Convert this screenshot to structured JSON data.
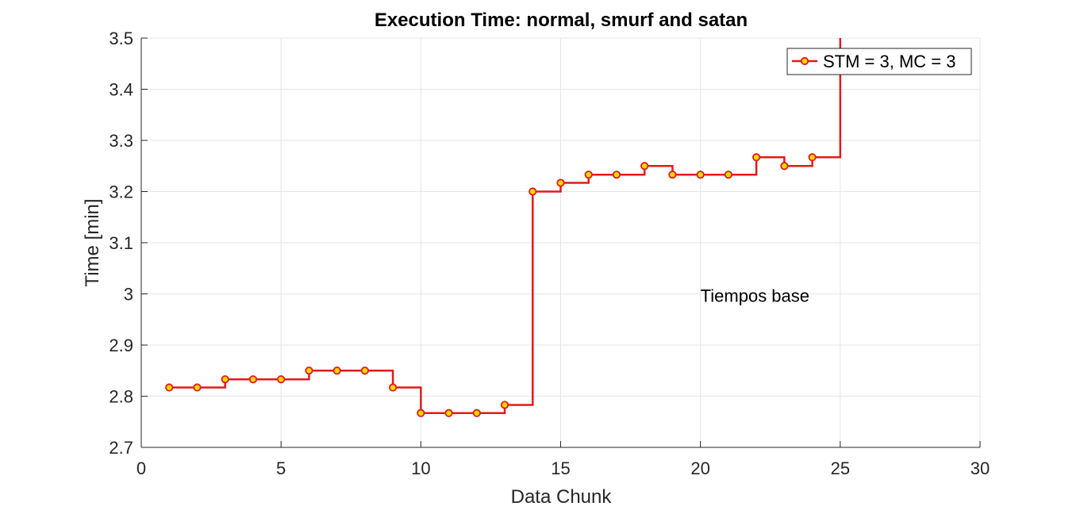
{
  "chart_data": {
    "type": "line",
    "style": "stairs",
    "title": "Execution Time: normal, smurf and satan",
    "xlabel": "Data Chunk",
    "ylabel": "Time [min]",
    "xlim": [
      0,
      30
    ],
    "ylim": [
      2.7,
      3.5
    ],
    "xticks": [
      0,
      5,
      10,
      15,
      20,
      25,
      30
    ],
    "xtick_labels": [
      "0",
      "5",
      "10",
      "15",
      "20",
      "25",
      "30"
    ],
    "yticks": [
      2.7,
      2.8,
      2.9,
      3.0,
      3.1,
      3.2,
      3.3,
      3.4,
      3.5
    ],
    "ytick_labels": [
      "2.7",
      "2.8",
      "2.9",
      "3",
      "3.1",
      "3.2",
      "3.3",
      "3.4",
      "3.5"
    ],
    "grid": true,
    "legend_position": "top-right",
    "series": [
      {
        "name": "STM = 3, MC = 3",
        "line_color": "#e31a1c",
        "marker_face_color": "#ffd700",
        "marker_edge_color": "#e31a1c",
        "x": [
          1,
          2,
          3,
          4,
          5,
          6,
          7,
          8,
          9,
          10,
          11,
          12,
          13,
          14,
          15,
          16,
          17,
          18,
          19,
          20,
          21,
          22,
          23,
          24,
          25
        ],
        "y": [
          2.817,
          2.817,
          2.833,
          2.833,
          2.833,
          2.85,
          2.85,
          2.85,
          2.817,
          2.767,
          2.767,
          2.767,
          2.783,
          3.2,
          3.217,
          3.233,
          3.233,
          3.25,
          3.233,
          3.233,
          3.233,
          3.267,
          3.25,
          3.267,
          3.5
        ]
      }
    ],
    "annotations": [
      {
        "text": "Tiempos base",
        "x": 20,
        "y": 3.0
      }
    ]
  }
}
